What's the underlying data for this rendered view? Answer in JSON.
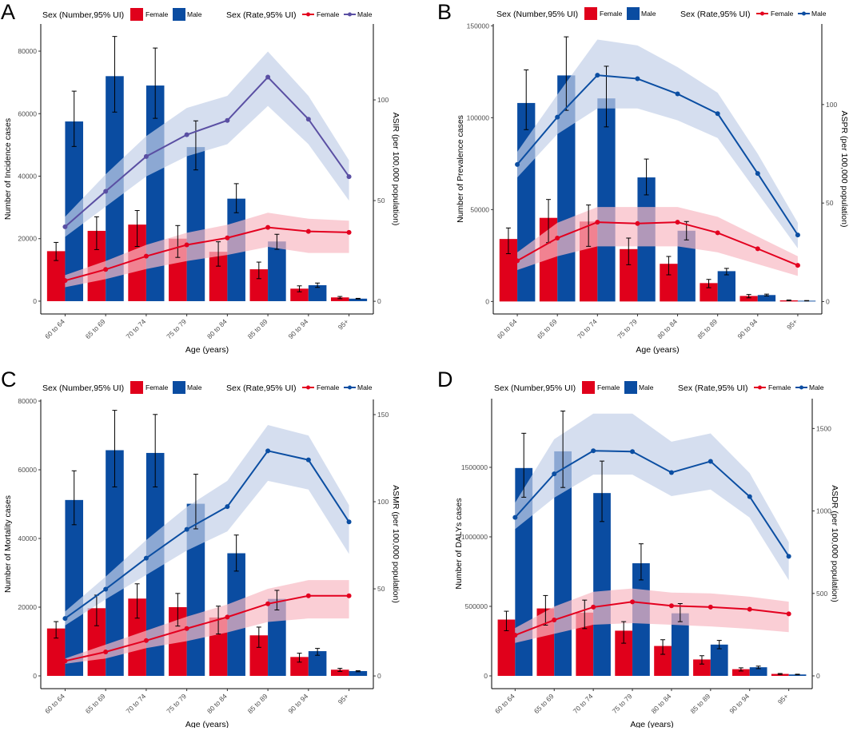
{
  "colors": {
    "female_bar": "#e0001b",
    "male_bar": "#0a4ca1",
    "female_line": "#e3001f",
    "male_line_A": "#5a4fa3",
    "male_line": "#0b4ea2",
    "female_ribbon": "#f8b9c3",
    "male_ribbon": "#c3d0e8"
  },
  "chart_data": [
    {
      "panel": "A",
      "type": "bar+line",
      "legend": {
        "number_title": "Sex (Number,95% UI)",
        "rate_title": "Sex (Rate,95% UI)",
        "female": "Female",
        "male": "Male"
      },
      "xlabel": "Age (years)",
      "ylabel": "Number of Incidence cases",
      "y2label": "ASIR (per 100,000 population)",
      "categories": [
        "60 to 64",
        "65 to 69",
        "70 to 74",
        "75 to 79",
        "80 to 84",
        "85 to 89",
        "90 to 94",
        "95+"
      ],
      "left_ticks": [
        "0",
        "20000",
        "40000",
        "60000",
        "80000"
      ],
      "left_tick_values": [
        0,
        20000,
        40000,
        60000,
        80000
      ],
      "right_ticks": [
        "0",
        "50",
        "100"
      ],
      "right_tick_values": [
        0,
        50,
        100
      ],
      "ylim": [
        -4100,
        88700
      ],
      "y2lim": [
        -6.3,
        137.7
      ],
      "number_female": {
        "values": [
          16000,
          22500,
          24500,
          20000,
          15800,
          10200,
          4000,
          1200
        ],
        "lower": [
          13000,
          16500,
          17500,
          14000,
          11200,
          7200,
          3000,
          800
        ],
        "upper": [
          18800,
          27000,
          29000,
          24200,
          19000,
          12500,
          4900,
          1500
        ]
      },
      "number_male": {
        "values": [
          57500,
          72000,
          69000,
          49300,
          32800,
          19100,
          5100,
          800
        ],
        "lower": [
          49500,
          60500,
          58500,
          42000,
          28300,
          16600,
          4400,
          700
        ],
        "upper": [
          67200,
          84700,
          81000,
          57700,
          37600,
          21400,
          5800,
          900
        ]
      },
      "rate_female": {
        "values": [
          10.3,
          15.8,
          22.4,
          28,
          31.5,
          36.7,
          34.7,
          34.2
        ],
        "lower": [
          7,
          11,
          16,
          20,
          23,
          27,
          24,
          24
        ],
        "upper": [
          13,
          20,
          28,
          34,
          38,
          44,
          41,
          40
        ]
      },
      "rate_male": {
        "values": [
          37,
          54.6,
          71.9,
          82.7,
          89.8,
          111.3,
          90.4,
          61.9
        ],
        "lower": [
          32,
          47,
          62,
          72,
          78,
          97,
          78,
          50
        ],
        "upper": [
          42,
          63,
          82,
          96,
          102,
          124,
          102,
          70
        ]
      }
    },
    {
      "panel": "B",
      "type": "bar+line",
      "legend": {
        "number_title": "Sex (Number,95% UI)",
        "rate_title": "Sex (Rate,95% UI)",
        "female": "Female",
        "male": "Male"
      },
      "xlabel": "Age (years)",
      "ylabel": "Number of Prevalence cases",
      "y2label": "ASPR (per 100,000 population)",
      "categories": [
        "60 to 64",
        "65 to 69",
        "70 to 74",
        "75 to 79",
        "80 to 84",
        "85 to 89",
        "90 to 94",
        "95+"
      ],
      "left_ticks": [
        "0",
        "50000",
        "100000",
        "150000"
      ],
      "left_tick_values": [
        0,
        50000,
        100000,
        150000
      ],
      "right_ticks": [
        "0",
        "50",
        "100"
      ],
      "right_tick_values": [
        0,
        50,
        100
      ],
      "ylim": [
        -6800,
        151000
      ],
      "y2lim": [
        -6.3,
        140.9
      ],
      "number_female": {
        "values": [
          34000,
          45500,
          43500,
          28500,
          20500,
          10000,
          3000,
          600
        ],
        "lower": [
          26000,
          32000,
          30000,
          20000,
          14500,
          7500,
          2000,
          400
        ],
        "upper": [
          40000,
          55500,
          52500,
          34500,
          24500,
          12000,
          3800,
          800
        ]
      },
      "number_male": {
        "values": [
          108000,
          123000,
          110500,
          67500,
          38500,
          16500,
          3500,
          400
        ],
        "lower": [
          93500,
          104000,
          95000,
          58000,
          33500,
          14500,
          3000,
          300
        ],
        "upper": [
          126000,
          144000,
          128000,
          77500,
          43500,
          18000,
          4000,
          500
        ]
      },
      "rate_female": {
        "values": [
          20.7,
          32.2,
          40.3,
          39.6,
          40.3,
          34.9,
          26.8,
          18.4
        ],
        "lower": [
          16,
          23,
          28,
          28,
          28,
          25,
          19,
          13
        ],
        "upper": [
          25,
          40,
          48,
          48,
          48,
          43,
          33,
          23
        ]
      },
      "rate_male": {
        "values": [
          69.6,
          93.6,
          114.9,
          113.1,
          105.4,
          95.4,
          65,
          33.8
        ],
        "lower": [
          63,
          85,
          98,
          98,
          92,
          83,
          55,
          27
        ],
        "upper": [
          76,
          105,
          133,
          130,
          119,
          106,
          75,
          40
        ]
      }
    },
    {
      "panel": "C",
      "type": "bar+line",
      "legend": {
        "number_title": "Sex (Number,95% UI)",
        "rate_title": "Sex (Rate,95% UI)",
        "female": "Female",
        "male": "Male"
      },
      "xlabel": "Age (years)",
      "ylabel": "Number of Mortality cases",
      "y2label": "ASMR (per 100,000 population)",
      "categories": [
        "60 to 64",
        "65 to 69",
        "70 to 74",
        "75 to 79",
        "80 to 84",
        "85 to 89",
        "90 to 94",
        "95+"
      ],
      "left_ticks": [
        "0",
        "20000",
        "40000",
        "60000",
        "80000"
      ],
      "left_tick_values": [
        0,
        20000,
        40000,
        60000,
        80000
      ],
      "right_ticks": [
        "0",
        "50",
        "100",
        "150"
      ],
      "right_tick_values": [
        0,
        50,
        100,
        150
      ],
      "ylim": [
        -3720,
        80470
      ],
      "y2lim": [
        -7.3,
        158.7
      ],
      "number_female": {
        "values": [
          13800,
          19700,
          22500,
          20000,
          17000,
          11800,
          5500,
          1800
        ],
        "lower": [
          11000,
          14600,
          16800,
          14500,
          12200,
          8300,
          4000,
          1300
        ],
        "upper": [
          15800,
          23500,
          26800,
          24000,
          20300,
          14200,
          6600,
          2200
        ]
      },
      "number_male": {
        "values": [
          51200,
          65700,
          64900,
          50100,
          35700,
          22400,
          7200,
          1400
        ],
        "lower": [
          44000,
          55000,
          55000,
          42800,
          30500,
          19200,
          6000,
          1200
        ],
        "upper": [
          59700,
          77300,
          76100,
          58700,
          41000,
          24900,
          8000,
          1500
        ]
      },
      "rate_female": {
        "values": [
          8.6,
          13.8,
          20.3,
          27.2,
          33.8,
          41.4,
          46,
          46
        ],
        "lower": [
          7,
          10,
          16,
          20,
          25,
          31,
          33,
          33
        ],
        "upper": [
          10,
          18,
          26,
          34,
          41,
          50,
          55,
          55
        ]
      },
      "rate_male": {
        "values": [
          33,
          49.8,
          67.6,
          84.1,
          97.2,
          129.2,
          124,
          88.4
        ],
        "lower": [
          29,
          44,
          58,
          72,
          83,
          112,
          107,
          70
        ],
        "upper": [
          37,
          57,
          78,
          97,
          112,
          144,
          138,
          98
        ]
      }
    },
    {
      "panel": "D",
      "type": "bar+line",
      "legend": {
        "number_title": "Sex (Number,95% UI)",
        "rate_title": "Sex (Rate,95% UI)",
        "female": "Female",
        "male": "Male"
      },
      "xlabel": "Age (years)",
      "ylabel": "Number of DALYs cases",
      "y2label": "ASDR (per 100,000 population)",
      "categories": [
        "60 to 64",
        "65 to 69",
        "70 to 74",
        "75 to 79",
        "80 to 84",
        "85 to 89",
        "90 to 94",
        "95+"
      ],
      "left_ticks": [
        "0",
        "500000",
        "1000000",
        "1500000"
      ],
      "left_tick_values": [
        0,
        500000,
        1000000,
        1500000
      ],
      "right_ticks": [
        "0",
        "500",
        "1000",
        "1500"
      ],
      "right_tick_values": [
        0,
        500,
        1000,
        1500
      ],
      "ylim": [
        -92000,
        1994000
      ],
      "y2lim": [
        -77.5,
        1681
      ],
      "number_female": {
        "values": [
          405000,
          485000,
          455000,
          325000,
          215000,
          118000,
          48000,
          14000
        ],
        "lower": [
          325000,
          365000,
          340000,
          235000,
          155000,
          85000,
          35000,
          10000
        ],
        "upper": [
          465000,
          578000,
          545000,
          390000,
          260000,
          145000,
          58000,
          17000
        ]
      },
      "number_male": {
        "values": [
          1495000,
          1615000,
          1315000,
          810000,
          450000,
          225000,
          62000,
          10000
        ],
        "lower": [
          1285000,
          1355000,
          1110000,
          690000,
          390000,
          195000,
          52000,
          8000
        ],
        "upper": [
          1745000,
          1905000,
          1545000,
          950000,
          520000,
          255000,
          70000,
          12000
        ]
      },
      "rate_female": {
        "values": [
          247,
          339,
          417,
          449,
          425,
          417,
          404,
          376
        ],
        "lower": [
          200,
          255,
          310,
          320,
          310,
          300,
          285,
          265
        ],
        "upper": [
          290,
          420,
          510,
          530,
          505,
          500,
          480,
          450
        ]
      },
      "rate_male": {
        "values": [
          961,
          1225,
          1365,
          1360,
          1233,
          1301,
          1087,
          725
        ],
        "lower": [
          890,
          1080,
          1220,
          1220,
          1090,
          1130,
          960,
          580
        ],
        "upper": [
          1050,
          1435,
          1590,
          1590,
          1420,
          1470,
          1230,
          810
        ]
      }
    }
  ]
}
